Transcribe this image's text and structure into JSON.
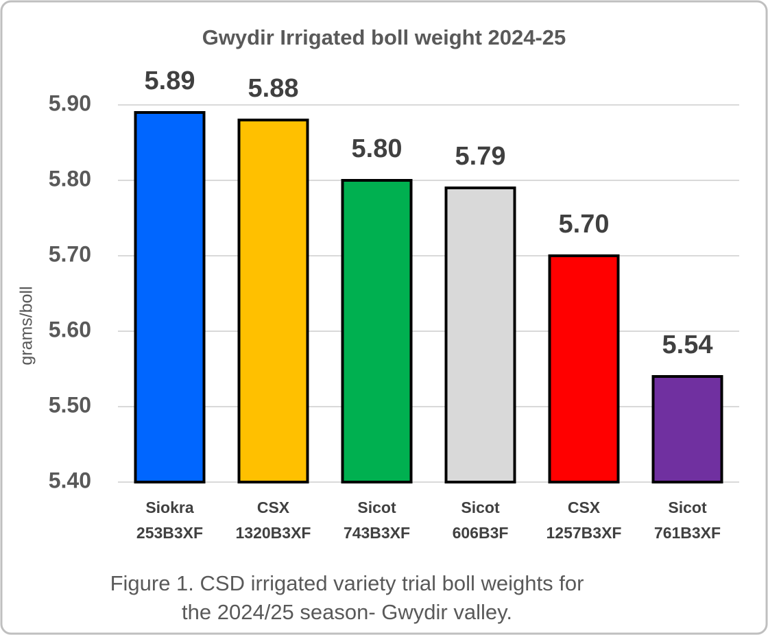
{
  "chart_data": {
    "type": "bar",
    "title": "Gwydir Irrigated boll weight 2024-25",
    "y_label": "grams/boll",
    "categories": [
      [
        "Siokra",
        "253B3XF"
      ],
      [
        "CSX",
        "1320B3XF"
      ],
      [
        "Sicot",
        "743B3XF"
      ],
      [
        "Sicot",
        "606B3F"
      ],
      [
        "CSX",
        "1257B3XF"
      ],
      [
        "Sicot",
        "761B3XF"
      ]
    ],
    "values": [
      5.89,
      5.88,
      5.8,
      5.79,
      5.7,
      5.54
    ],
    "value_labels": [
      "5.89",
      "5.88",
      "5.80",
      "5.79",
      "5.70",
      "5.54"
    ],
    "colors": [
      "#0066ff",
      "#ffc000",
      "#00b050",
      "#d9d9d9",
      "#ff0000",
      "#7030a0"
    ],
    "ylim": [
      5.4,
      5.9
    ],
    "yticks": [
      {
        "value": 5.4,
        "label": "5.40"
      },
      {
        "value": 5.5,
        "label": "5.50"
      },
      {
        "value": 5.6,
        "label": "5.60"
      },
      {
        "value": 5.7,
        "label": "5.70"
      },
      {
        "value": 5.8,
        "label": "5.80"
      },
      {
        "value": 5.9,
        "label": "5.90"
      }
    ],
    "grid": true,
    "caption": [
      "Figure 1. CSD irrigated variety trial boll weights for",
      "the 2024/25 season- Gwydir valley."
    ]
  }
}
